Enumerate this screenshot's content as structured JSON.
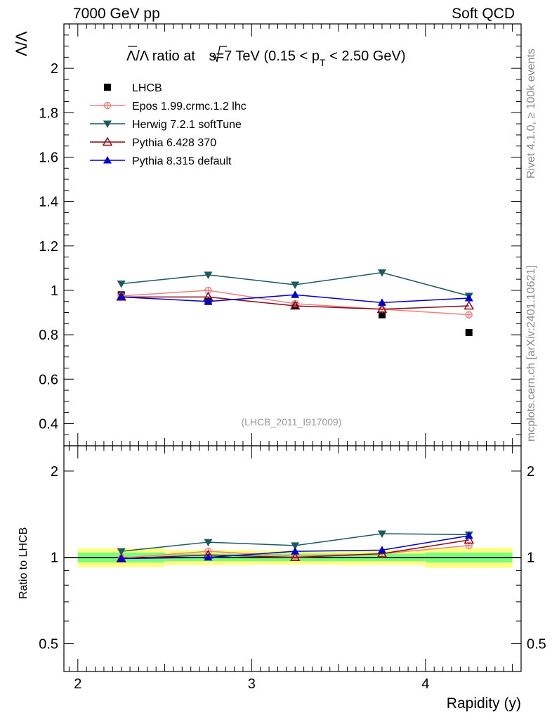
{
  "header": {
    "left": "7000 GeV pp",
    "right": "Soft QCD"
  },
  "side_labels": {
    "rivet": "Rivet 4.1.0, ≥ 100k events",
    "mcplots": "mcplots.cern.ch [arXiv:2401.10621]"
  },
  "chart_data": [
    {
      "panel": "main",
      "type": "line",
      "title_parts": {
        "ratio": "Λ/Λ ratio at ",
        "sqrt_s": "s",
        "energy": "=7 TeV (0.15 < p",
        "sub": "T",
        "range": " < 2.50 GeV)"
      },
      "ylabel": "Λ/Λ",
      "xlabel": "Rapidity (y)",
      "analysis_tag": "(LHCB_2011_I917009)",
      "xlim": [
        1.92,
        4.55
      ],
      "ylim": [
        0.3,
        2.2
      ],
      "yticks": [
        0.4,
        0.6,
        0.8,
        1,
        1.2,
        1.4,
        1.6,
        1.8,
        2
      ],
      "ytick_labels": [
        "0.4",
        "0.6",
        "0.8",
        "1",
        "1.2",
        "1.4",
        "1.6",
        "1.8",
        "2"
      ],
      "x": [
        2.25,
        2.75,
        3.25,
        3.75,
        4.25
      ],
      "series": [
        {
          "name": "LHCB",
          "color": "#000000",
          "marker": "square",
          "line": false,
          "values": [
            0.98,
            0.95,
            0.93,
            0.89,
            0.81
          ]
        },
        {
          "name": "Epos 1.99.crmc.1.2 lhc",
          "color": "#f08080",
          "marker": "plus-circle",
          "line": true,
          "values": [
            0.975,
            1.0,
            0.94,
            0.915,
            0.89
          ]
        },
        {
          "name": "Herwig 7.2.1 softTune",
          "color": "#1c5a60",
          "marker": "triangle-down",
          "line": true,
          "values": [
            1.03,
            1.07,
            1.025,
            1.08,
            0.975
          ]
        },
        {
          "name": "Pythia 6.428 370",
          "color": "#8b0a1a",
          "marker": "triangle-open",
          "line": true,
          "values": [
            0.97,
            0.97,
            0.93,
            0.915,
            0.93
          ]
        },
        {
          "name": "Pythia 8.315 default",
          "color": "#0000cc",
          "marker": "triangle-up",
          "line": true,
          "values": [
            0.97,
            0.95,
            0.98,
            0.945,
            0.965
          ]
        }
      ]
    },
    {
      "panel": "ratio",
      "type": "line",
      "ylabel": "Ratio to LHCB",
      "scale": "log",
      "ylim": [
        0.4,
        2.45
      ],
      "yticks": [
        0.5,
        1,
        2
      ],
      "ytick_labels": [
        "0.5",
        "1",
        "2"
      ],
      "xticks": [
        2,
        3,
        4
      ],
      "xtick_labels": [
        "2",
        "3",
        "4"
      ],
      "x": [
        2.25,
        2.75,
        3.25,
        3.75,
        4.25
      ],
      "uncertainty_bands": {
        "x_edges": [
          2.0,
          2.5,
          3.0,
          3.5,
          4.0,
          4.5
        ],
        "stat_half_width": [
          0.04,
          0.03,
          0.03,
          0.03,
          0.04
        ],
        "total_half_width": [
          0.075,
          0.06,
          0.055,
          0.06,
          0.08
        ],
        "inner_color": "#7cfc7c",
        "outer_color": "#ffff80"
      },
      "series": [
        {
          "name": "Epos 1.99.crmc.1.2 lhc",
          "color": "#f08080",
          "marker": "plus-circle",
          "values": [
            0.995,
            1.05,
            1.01,
            1.03,
            1.1
          ]
        },
        {
          "name": "Herwig 7.2.1 softTune",
          "color": "#1c5a60",
          "marker": "triangle-down",
          "values": [
            1.05,
            1.13,
            1.1,
            1.21,
            1.2
          ]
        },
        {
          "name": "Pythia 6.428 370",
          "color": "#8b0a1a",
          "marker": "triangle-open",
          "values": [
            0.99,
            1.02,
            1.0,
            1.03,
            1.15
          ]
        },
        {
          "name": "Pythia 8.315 default",
          "color": "#0000cc",
          "marker": "triangle-up",
          "values": [
            0.99,
            1.0,
            1.05,
            1.06,
            1.19
          ]
        }
      ]
    }
  ]
}
